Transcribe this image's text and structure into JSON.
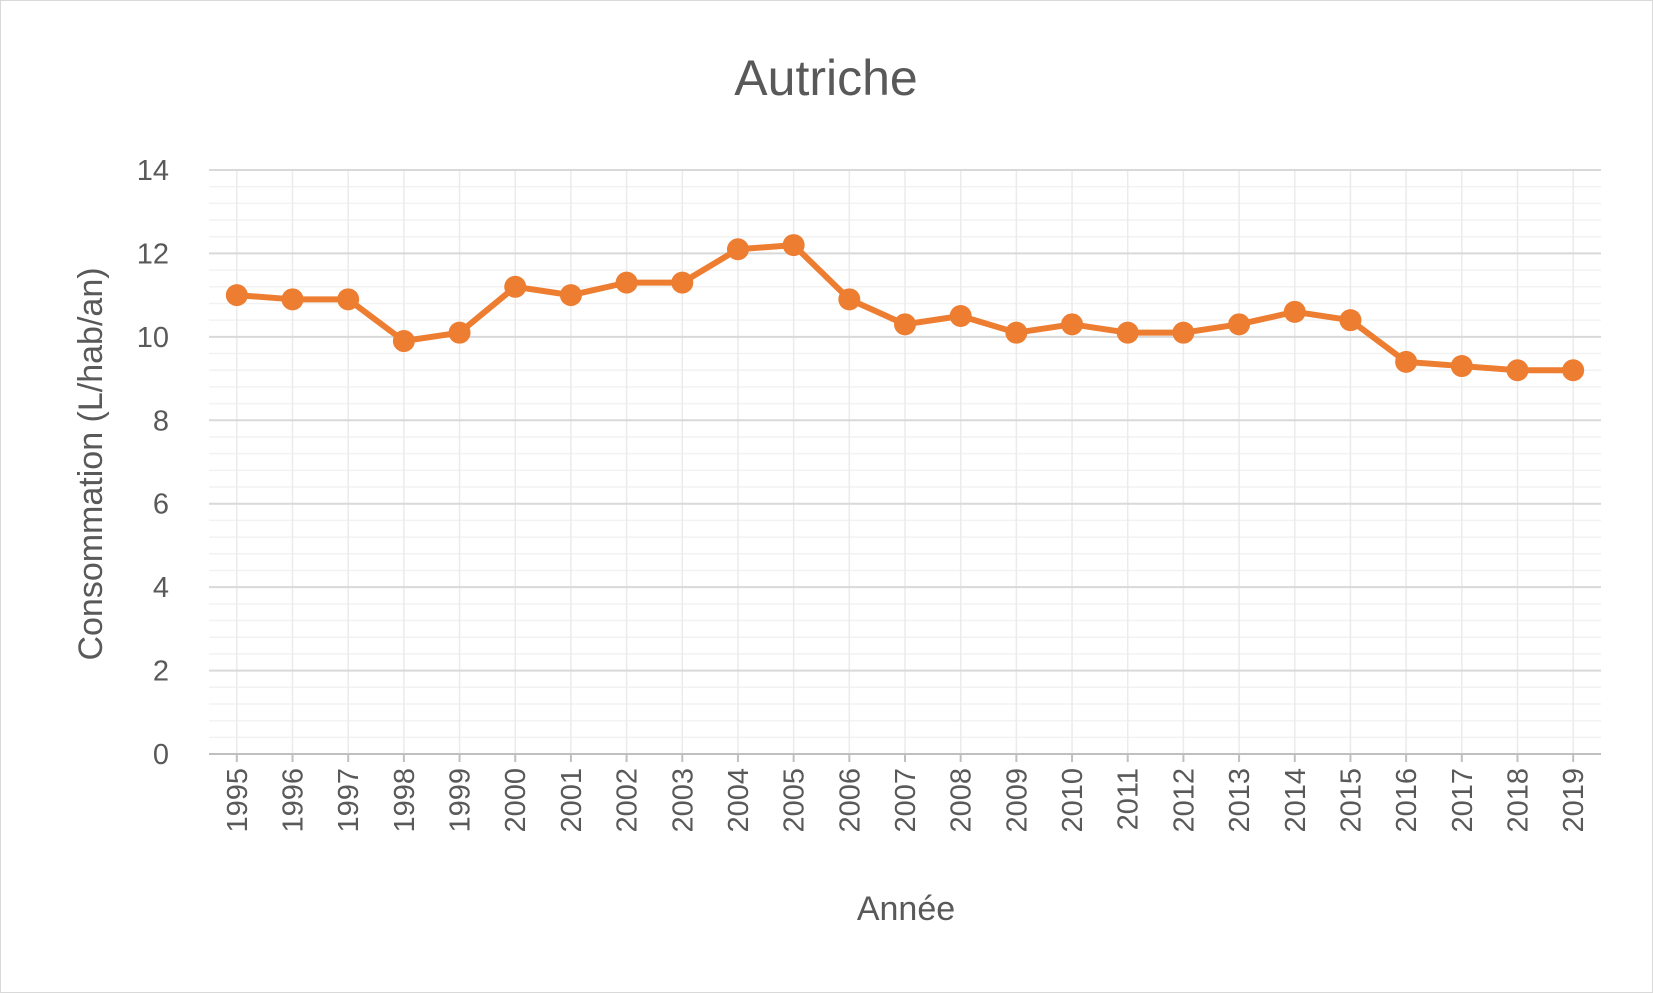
{
  "chart_data": {
    "type": "line",
    "title": "Autriche",
    "xlabel": "Année",
    "ylabel": "Consommation (L/hab/an)",
    "ylim": [
      0,
      14
    ],
    "yticks": [
      "0",
      "2",
      "4",
      "6",
      "8",
      "10",
      "12",
      "14"
    ],
    "x": [
      "1995",
      "1996",
      "1997",
      "1998",
      "1999",
      "2000",
      "2001",
      "2002",
      "2003",
      "2004",
      "2005",
      "2006",
      "2007",
      "2008",
      "2009",
      "2010",
      "2011",
      "2012",
      "2013",
      "2014",
      "2015",
      "2016",
      "2017",
      "2018",
      "2019"
    ],
    "series": [
      {
        "values": [
          11.0,
          10.9,
          10.9,
          9.9,
          10.1,
          11.2,
          11.0,
          11.3,
          11.3,
          12.1,
          12.2,
          10.9,
          10.3,
          10.5,
          10.1,
          10.3,
          10.1,
          10.1,
          10.3,
          10.6,
          10.4,
          9.4,
          9.3,
          9.2,
          9.2
        ],
        "color": "#ED7D31"
      }
    ],
    "grid": true,
    "minor_grid": true,
    "legend": "none"
  }
}
